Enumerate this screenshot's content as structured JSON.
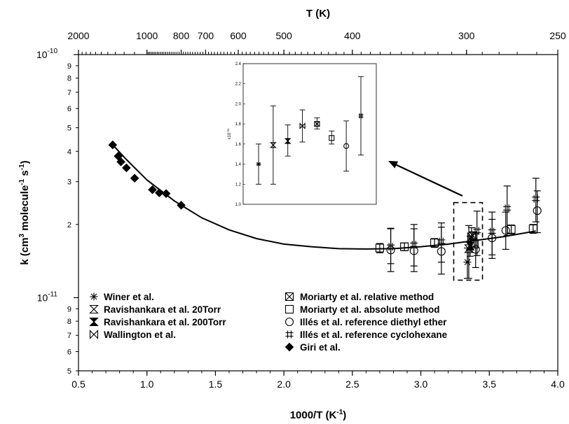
{
  "chart_data": {
    "type": "scatter",
    "xlabel": "1000/T (K",
    "xlabel_sup": "-1",
    "xlabel_close": ")",
    "top_axis_label": "T (K)",
    "ylabel_parts": [
      "k (cm",
      "3",
      " molecule",
      "-1",
      " s",
      "-1",
      ")"
    ],
    "xlim": [
      0.5,
      4.0
    ],
    "ylim": [
      5e-12,
      1e-10
    ],
    "y_scale": "log",
    "x_ticks": [
      "0.5",
      "1.0",
      "1.5",
      "2.0",
      "2.5",
      "3.0",
      "3.5",
      "4.0"
    ],
    "y_major_ticks": [
      {
        "value": 1e-10,
        "base": "10",
        "exp": "-10"
      },
      {
        "value": 1e-11,
        "base": "10",
        "exp": "-11"
      }
    ],
    "y_minor_ticks": [
      {
        "value": 9e-11,
        "label": "9"
      },
      {
        "value": 8e-11,
        "label": "8"
      },
      {
        "value": 7e-11,
        "label": "7"
      },
      {
        "value": 6e-11,
        "label": "6"
      },
      {
        "value": 5e-11,
        "label": "5"
      },
      {
        "value": 4e-11,
        "label": "4"
      },
      {
        "value": 3e-11,
        "label": "3"
      },
      {
        "value": 2e-11,
        "label": "2"
      },
      {
        "value": 9e-12,
        "label": "9"
      },
      {
        "value": 8e-12,
        "label": "8"
      },
      {
        "value": 7e-12,
        "label": "7"
      },
      {
        "value": 6e-12,
        "label": "6"
      },
      {
        "value": 5e-12,
        "label": "5"
      }
    ],
    "top_ticks": [
      {
        "T": 2000,
        "label": "2000"
      },
      {
        "T": 1000,
        "label": "1000"
      },
      {
        "T": 800,
        "label": "800"
      },
      {
        "T": 700,
        "label": "700"
      },
      {
        "T": 600,
        "label": "600"
      },
      {
        "T": 500,
        "label": "500"
      },
      {
        "T": 400,
        "label": "400"
      },
      {
        "T": 300,
        "label": "300"
      },
      {
        "T": 250,
        "label": "250"
      }
    ],
    "series": [
      {
        "name": "Winer et al.",
        "marker": "asterisk",
        "points": [
          {
            "x": 3.34,
            "y": 1.4e-11,
            "lo": 1.2e-11,
            "hi": 1.6e-11
          }
        ]
      },
      {
        "name": "Ravishankara et al. 20Torr",
        "marker": "hourglass",
        "points": [
          {
            "x": 3.35,
            "y": 1.59e-11,
            "lo": 1.2e-11,
            "hi": 1.98e-11
          }
        ]
      },
      {
        "name": "Ravishankara et al. 200Torr",
        "marker": "hourglass-filled",
        "points": [
          {
            "x": 3.36,
            "y": 1.63e-11,
            "lo": 1.48e-11,
            "hi": 1.79e-11
          }
        ]
      },
      {
        "name": "Wallington et al.",
        "marker": "bowtie",
        "points": [
          {
            "x": 3.37,
            "y": 1.78e-11,
            "lo": 1.62e-11,
            "hi": 1.94e-11
          }
        ]
      },
      {
        "name": "Moriarty et al. relative method",
        "marker": "boxx",
        "points": [
          {
            "x": 3.38,
            "y": 1.8e-11,
            "lo": 1.75e-11,
            "hi": 1.86e-11
          }
        ]
      },
      {
        "name": "Moriarty et al. absolute method",
        "marker": "square",
        "points": [
          {
            "x": 2.7,
            "y": 1.6e-11,
            "lo": 1.53e-11,
            "hi": 1.67e-11
          },
          {
            "x": 2.88,
            "y": 1.62e-11,
            "lo": 1.56e-11,
            "hi": 1.68e-11
          },
          {
            "x": 3.1,
            "y": 1.68e-11,
            "lo": 1.61e-11,
            "hi": 1.75e-11
          },
          {
            "x": 3.39,
            "y": 1.66e-11,
            "lo": 1.6e-11,
            "hi": 1.73e-11
          },
          {
            "x": 3.66,
            "y": 1.91e-11,
            "lo": 1.83e-11,
            "hi": 1.99e-11
          },
          {
            "x": 3.82,
            "y": 1.92e-11,
            "lo": 1.84e-11,
            "hi": 2e-11
          }
        ]
      },
      {
        "name": "Illés et al. reference diethyl ether",
        "marker": "circle",
        "points": [
          {
            "x": 2.78,
            "y": 1.57e-11,
            "lo": 1.28e-11,
            "hi": 1.92e-11
          },
          {
            "x": 2.95,
            "y": 1.56e-11,
            "lo": 1.28e-11,
            "hi": 1.92e-11
          },
          {
            "x": 3.15,
            "y": 1.55e-11,
            "lo": 1.25e-11,
            "hi": 1.95e-11
          },
          {
            "x": 3.4,
            "y": 1.58e-11,
            "lo": 1.33e-11,
            "hi": 1.83e-11
          },
          {
            "x": 3.52,
            "y": 1.76e-11,
            "lo": 1.45e-11,
            "hi": 2.1e-11
          },
          {
            "x": 3.62,
            "y": 1.89e-11,
            "lo": 1.58e-11,
            "hi": 2.25e-11
          },
          {
            "x": 3.85,
            "y": 2.28e-11,
            "lo": 1.85e-11,
            "hi": 2.75e-11
          }
        ]
      },
      {
        "name": "Illés et al. reference cyclohexane",
        "marker": "hash",
        "points": [
          {
            "x": 2.78,
            "y": 1.62e-11,
            "lo": 1.38e-11,
            "hi": 1.93e-11
          },
          {
            "x": 2.95,
            "y": 1.65e-11,
            "lo": 1.35e-11,
            "hi": 2e-11
          },
          {
            "x": 3.15,
            "y": 1.7e-11,
            "lo": 1.4e-11,
            "hi": 2.03e-11
          },
          {
            "x": 3.41,
            "y": 1.88e-11,
            "lo": 1.49e-11,
            "hi": 2.27e-11
          },
          {
            "x": 3.52,
            "y": 1.87e-11,
            "lo": 1.5e-11,
            "hi": 2.25e-11
          },
          {
            "x": 3.63,
            "y": 2.33e-11,
            "lo": 1.8e-11,
            "hi": 2.88e-11
          },
          {
            "x": 3.84,
            "y": 2.55e-11,
            "lo": 2.05e-11,
            "hi": 3.1e-11
          }
        ]
      },
      {
        "name": "Giri et al.",
        "marker": "diamond-filled",
        "points": [
          {
            "x": 0.75,
            "y": 4.25e-11
          },
          {
            "x": 0.79,
            "y": 3.82e-11
          },
          {
            "x": 0.81,
            "y": 3.62e-11
          },
          {
            "x": 0.85,
            "y": 3.42e-11
          },
          {
            "x": 0.91,
            "y": 3.1e-11
          },
          {
            "x": 1.04,
            "y": 2.78e-11
          },
          {
            "x": 1.09,
            "y": 2.7e-11
          },
          {
            "x": 1.14,
            "y": 2.68e-11
          },
          {
            "x": 1.25,
            "y": 2.4e-11
          }
        ]
      }
    ],
    "fit_curve": [
      {
        "x": 0.75,
        "y": 4.25e-11
      },
      {
        "x": 0.85,
        "y": 3.7e-11
      },
      {
        "x": 1.0,
        "y": 3.05e-11
      },
      {
        "x": 1.2,
        "y": 2.5e-11
      },
      {
        "x": 1.4,
        "y": 2.13e-11
      },
      {
        "x": 1.6,
        "y": 1.9e-11
      },
      {
        "x": 1.8,
        "y": 1.75e-11
      },
      {
        "x": 2.0,
        "y": 1.66e-11
      },
      {
        "x": 2.2,
        "y": 1.62e-11
      },
      {
        "x": 2.4,
        "y": 1.59e-11
      },
      {
        "x": 2.6,
        "y": 1.585e-11
      },
      {
        "x": 2.8,
        "y": 1.59e-11
      },
      {
        "x": 3.0,
        "y": 1.62e-11
      },
      {
        "x": 3.2,
        "y": 1.66e-11
      },
      {
        "x": 3.4,
        "y": 1.72e-11
      },
      {
        "x": 3.6,
        "y": 1.78e-11
      },
      {
        "x": 3.84,
        "y": 1.88e-11
      }
    ],
    "highlight_box": {
      "x": [
        3.24,
        3.45
      ],
      "y": [
        1.18e-11,
        2.46e-11
      ]
    },
    "inset": {
      "y_multiplier_label": "x10",
      "y_multiplier_exp": "-11",
      "ylim": [
        1.0,
        2.4
      ],
      "y_ticks": [
        "1.0",
        "1.2",
        "1.4",
        "1.6",
        "1.8",
        "2.0",
        "2.2",
        "2.4"
      ],
      "points": [
        {
          "marker": "asterisk",
          "y": 1.4,
          "lo": 1.2,
          "hi": 1.6
        },
        {
          "marker": "hourglass",
          "y": 1.59,
          "lo": 1.2,
          "hi": 1.98
        },
        {
          "marker": "hourglass-filled",
          "y": 1.63,
          "lo": 1.48,
          "hi": 1.79
        },
        {
          "marker": "bowtie",
          "y": 1.78,
          "lo": 1.62,
          "hi": 1.94
        },
        {
          "marker": "boxx",
          "y": 1.8,
          "lo": 1.75,
          "hi": 1.86
        },
        {
          "marker": "square",
          "y": 1.66,
          "lo": 1.6,
          "hi": 1.73
        },
        {
          "marker": "circle",
          "y": 1.58,
          "lo": 1.33,
          "hi": 1.83
        },
        {
          "marker": "hash",
          "y": 1.88,
          "lo": 1.49,
          "hi": 2.27
        }
      ]
    },
    "legend_left": [
      {
        "marker": "asterisk",
        "label": "Winer et al."
      },
      {
        "marker": "hourglass",
        "label": "Ravishankara et al. 20Torr"
      },
      {
        "marker": "hourglass-filled",
        "label": "Ravishankara et al. 200Torr"
      },
      {
        "marker": "bowtie",
        "label": "Wallington et al."
      }
    ],
    "legend_right": [
      {
        "marker": "boxx",
        "label": "Moriarty et al. relative method"
      },
      {
        "marker": "square",
        "label": "Moriarty et al. absolute method"
      },
      {
        "marker": "circle",
        "label": "Illés et al. reference diethyl ether"
      },
      {
        "marker": "hash",
        "label": "Illés et al. reference cyclohexane"
      },
      {
        "marker": "diamond-filled",
        "label": "Giri et al."
      }
    ],
    "legend_placement": "bottom-left",
    "grid": false
  }
}
